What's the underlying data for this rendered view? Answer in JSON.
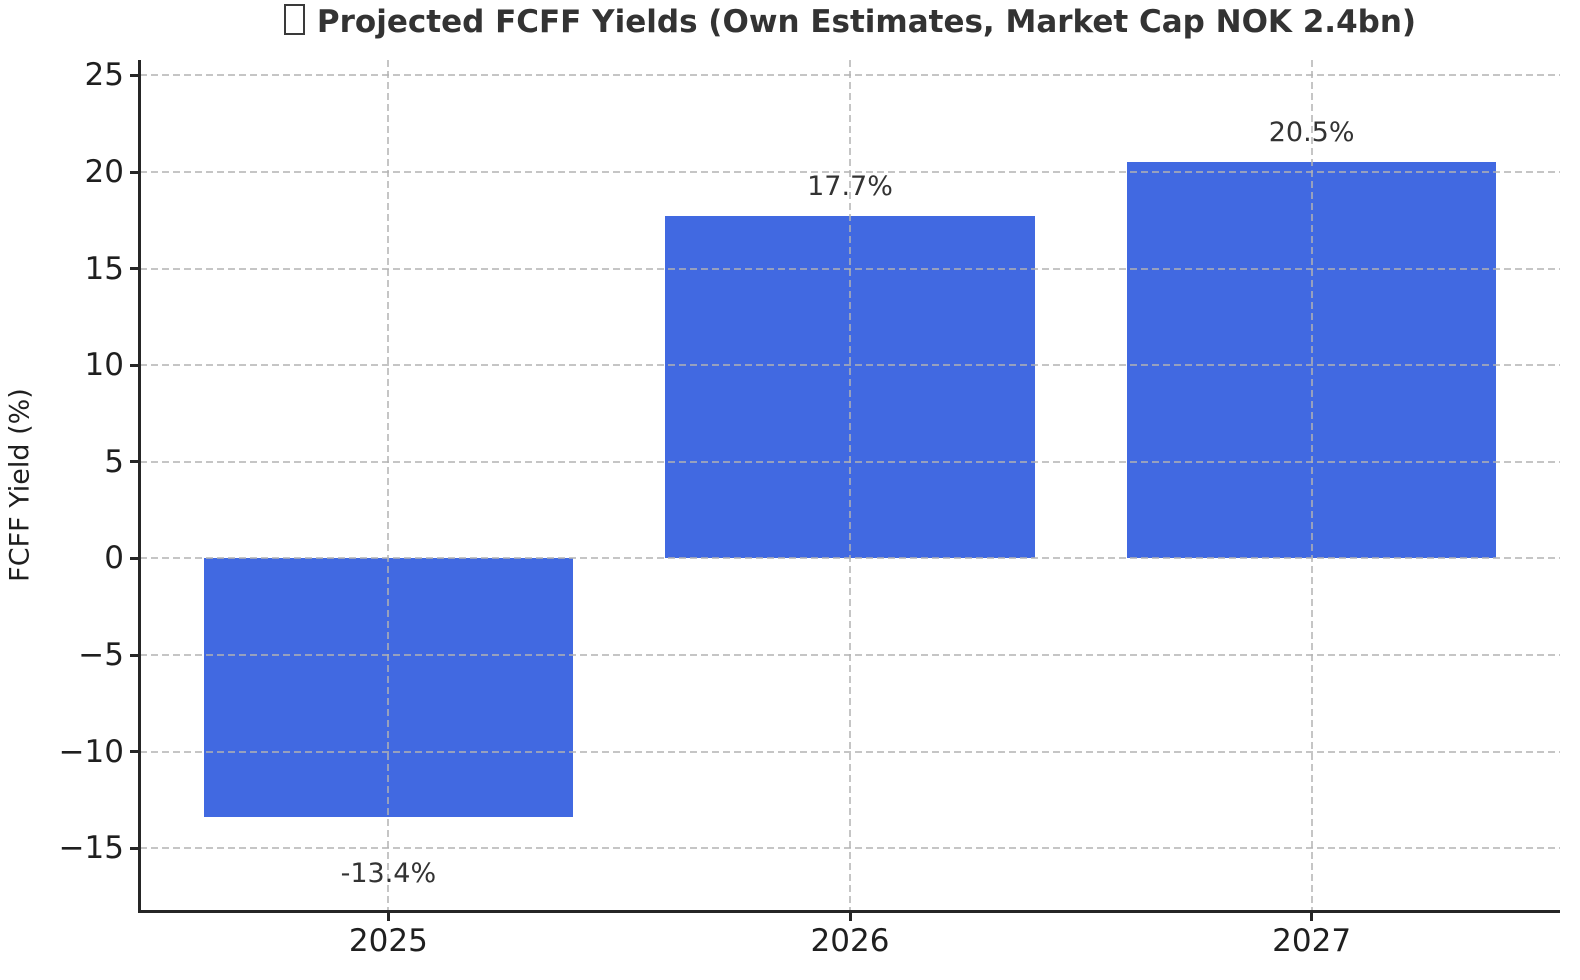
{
  "title": {
    "missing_glyph_note": "unrendered-emoji-tofu-box",
    "text": "Projected FCFF Yields (Own Estimates, Market Cap NOK 2.4bn)"
  },
  "chart_data": {
    "type": "bar",
    "title": "Projected FCFF Yields (Own Estimates, Market Cap NOK 2.4bn)",
    "categories": [
      "2025",
      "2026",
      "2027"
    ],
    "values": [
      -13.4,
      17.7,
      20.5
    ],
    "bar_labels": [
      "-13.4%",
      "17.7%",
      "20.5%"
    ],
    "xlabel": "",
    "ylabel": "FCFF Yield (%)",
    "ylim": [
      -18.2,
      25.8
    ],
    "yticks": [
      25,
      20,
      15,
      10,
      5,
      0,
      -5,
      -10,
      -15
    ],
    "ytick_labels": [
      "25",
      "20",
      "15",
      "10",
      "5",
      "0",
      "−5",
      "−10",
      "−15"
    ],
    "grid": {
      "show": true,
      "axis": "both",
      "style": "dashed",
      "color": "#cccccc"
    },
    "legend_position": "none",
    "bar_color": "#4169e1",
    "bar_width_fraction": 0.8,
    "spines": [
      "left",
      "bottom"
    ]
  }
}
